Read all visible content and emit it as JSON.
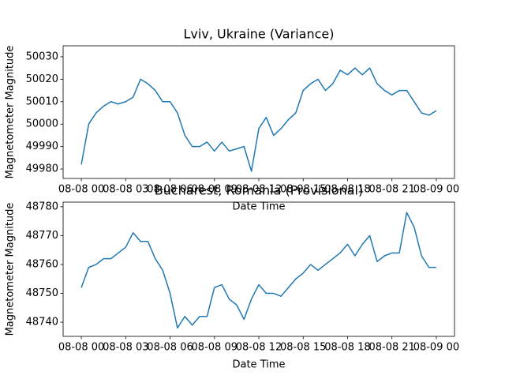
{
  "chart_data": [
    {
      "type": "line",
      "title": "Lviv, Ukraine (Variance)",
      "xlabel": "Date Time",
      "ylabel": "Magnetometer Magnitude",
      "color": "#1f77b4",
      "x": [
        0,
        0.5,
        1,
        1.5,
        2,
        2.5,
        3,
        3.5,
        4,
        4.5,
        5,
        5.5,
        6,
        6.5,
        7,
        7.5,
        8,
        8.5,
        9,
        9.5,
        10,
        10.5,
        11,
        11.5,
        12,
        12.5,
        13,
        13.5,
        14,
        14.5,
        15,
        15.5,
        16,
        16.5,
        17,
        17.5,
        18,
        18.5,
        19,
        19.5,
        20,
        20.5,
        21,
        21.5,
        22,
        22.5,
        23,
        23.5,
        24
      ],
      "values": [
        49982,
        50000,
        50005,
        50008,
        50010,
        50009,
        50010,
        50012,
        50020,
        50018,
        50015,
        50010,
        50010,
        50005,
        49995,
        49990,
        49990,
        49992,
        49988,
        49992,
        49988,
        49989,
        49990,
        49979,
        49998,
        50003,
        49995,
        49998,
        50002,
        50005,
        50015,
        50018,
        50020,
        50015,
        50018,
        50024,
        50022,
        50025,
        50022,
        50025,
        50018,
        50015,
        50013,
        50015,
        50015,
        50010,
        50005,
        50004,
        50006
      ],
      "xlim": [
        -1.23,
        25.23
      ],
      "ylim": [
        49975.8,
        50034.9
      ],
      "xticks": [
        {
          "value": 0,
          "label": "08-08 00"
        },
        {
          "value": 3,
          "label": "08-08 03"
        },
        {
          "value": 6,
          "label": "08-08 06"
        },
        {
          "value": 9,
          "label": "08-08 09"
        },
        {
          "value": 12,
          "label": "08-08 12"
        },
        {
          "value": 15,
          "label": "08-08 15"
        },
        {
          "value": 18,
          "label": "08-08 18"
        },
        {
          "value": 21,
          "label": "08-08 21"
        },
        {
          "value": 24,
          "label": "08-09 00"
        }
      ],
      "yticks": [
        49980,
        49990,
        50000,
        50010,
        50020,
        50030
      ]
    },
    {
      "type": "line",
      "title": "Bucharest, Romania (Provisional)",
      "xlabel": "Date Time",
      "ylabel": "Magnetometer Magnitude",
      "color": "#1f77b4",
      "x": [
        0,
        0.5,
        1,
        1.5,
        2,
        2.5,
        3,
        3.5,
        4,
        4.5,
        5,
        5.5,
        6,
        6.5,
        7,
        7.5,
        8,
        8.5,
        9,
        9.5,
        10,
        10.5,
        11,
        11.5,
        12,
        12.5,
        13,
        13.5,
        14,
        14.5,
        15,
        15.5,
        16,
        16.5,
        17,
        17.5,
        18,
        18.5,
        19,
        19.5,
        20,
        20.5,
        21,
        21.5,
        22,
        22.5,
        23,
        23.5,
        24
      ],
      "values": [
        48752,
        48759,
        48760,
        48762,
        48762,
        48764,
        48766,
        48771,
        48768,
        48768,
        48762,
        48758,
        48750,
        48738,
        48742,
        48739,
        48742,
        48742,
        48752,
        48753,
        48748,
        48746,
        48741,
        48748,
        48753,
        48750,
        48750,
        48749,
        48752,
        48755,
        48757,
        48760,
        48758,
        48760,
        48762,
        48764,
        48767,
        48763,
        48767,
        48770,
        48761,
        48763,
        48764,
        48764,
        48778,
        48773,
        48763,
        48759,
        48759
      ],
      "xlim": [
        -1.23,
        25.23
      ],
      "ylim": [
        48735.1,
        48781.6
      ],
      "xticks": [
        {
          "value": 0,
          "label": "08-08 00"
        },
        {
          "value": 3,
          "label": "08-08 03"
        },
        {
          "value": 6,
          "label": "08-08 06"
        },
        {
          "value": 9,
          "label": "08-08 09"
        },
        {
          "value": 12,
          "label": "08-08 12"
        },
        {
          "value": 15,
          "label": "08-08 15"
        },
        {
          "value": 18,
          "label": "08-08 18"
        },
        {
          "value": 21,
          "label": "08-08 21"
        },
        {
          "value": 24,
          "label": "08-09 00"
        }
      ],
      "yticks": [
        48740,
        48750,
        48760,
        48770,
        48780
      ]
    }
  ]
}
